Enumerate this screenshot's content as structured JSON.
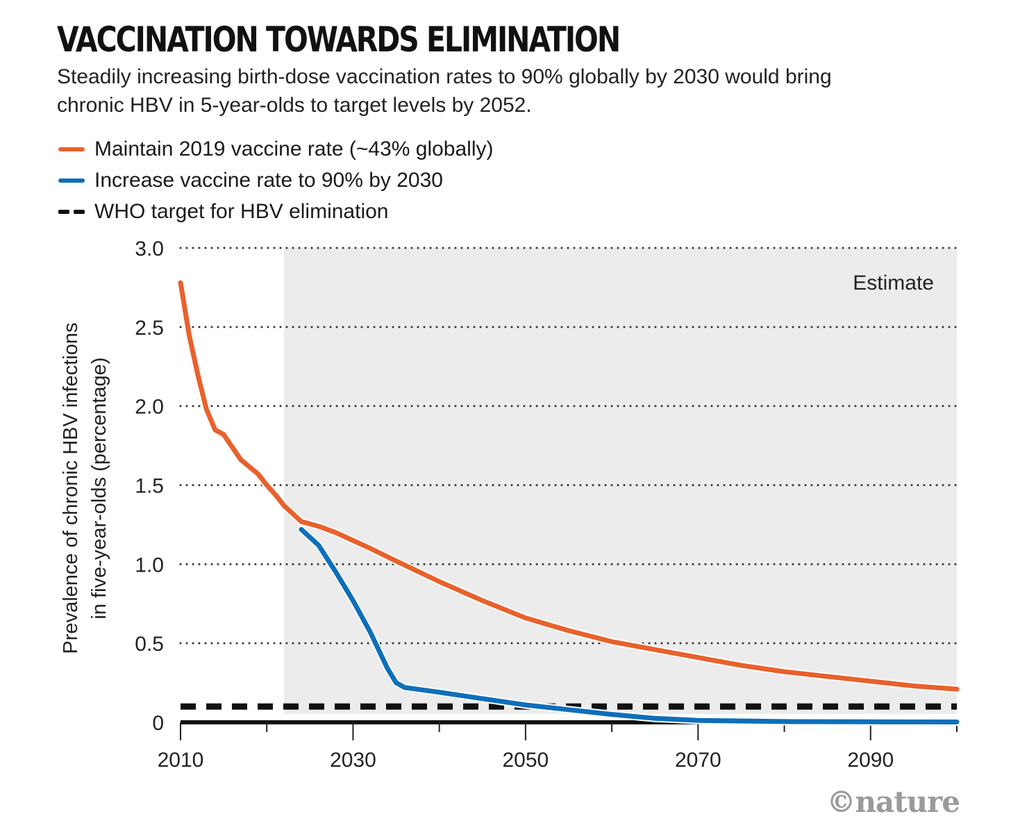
{
  "chart_data": {
    "type": "line",
    "title": "VACCINATION TOWARDS ELIMINATION",
    "subtitle": "Steadily increasing birth-dose vaccination rates to 90% globally by 2030 would bring chronic HBV in 5-year-olds to target levels by 2052.",
    "ylabel_line1": "Prevalence of chronic HBV infections",
    "ylabel_line2": "in five-year-olds (percentage)",
    "xlabel": "",
    "xlim": [
      2010,
      2100
    ],
    "ylim": [
      0,
      3.0
    ],
    "x_ticks": [
      2010,
      2030,
      2050,
      2070,
      2090
    ],
    "x_tick_labels": [
      "2010",
      "2030",
      "2050",
      "2070",
      "2090"
    ],
    "x_minor_ticks": [
      2020,
      2040,
      2060,
      2080,
      2100
    ],
    "y_ticks": [
      0,
      0.5,
      1.0,
      1.5,
      2.0,
      2.5,
      3.0
    ],
    "y_tick_labels": [
      "0",
      "0.5",
      "1.0",
      "1.5",
      "2.0",
      "2.5",
      "3.0"
    ],
    "grid": "horizontal dotted",
    "legend_placement": "top-left, above plot",
    "shaded_region": {
      "label": "Estimate",
      "from": 2022,
      "to": 2100
    },
    "series": [
      {
        "name": "Maintain 2019 vaccine rate (~43% globally)",
        "color": "#e8612c",
        "style": "solid",
        "x": [
          2010,
          2011,
          2012,
          2013,
          2014,
          2015,
          2016,
          2017,
          2019,
          2020,
          2021,
          2022,
          2024,
          2026,
          2028,
          2030,
          2032,
          2035,
          2040,
          2045,
          2050,
          2055,
          2060,
          2065,
          2070,
          2075,
          2080,
          2085,
          2090,
          2095,
          2100
        ],
        "values": [
          2.78,
          2.45,
          2.2,
          1.98,
          1.85,
          1.82,
          1.74,
          1.66,
          1.57,
          1.5,
          1.44,
          1.37,
          1.27,
          1.24,
          1.2,
          1.15,
          1.1,
          1.02,
          0.89,
          0.77,
          0.66,
          0.58,
          0.51,
          0.46,
          0.41,
          0.36,
          0.32,
          0.29,
          0.26,
          0.23,
          0.21
        ]
      },
      {
        "name": "Increase vaccine rate to 90% by 2030",
        "color": "#0e6fb9",
        "style": "solid",
        "x": [
          2024,
          2026,
          2028,
          2030,
          2032,
          2034,
          2035,
          2036,
          2040,
          2045,
          2050,
          2055,
          2060,
          2065,
          2070,
          2080,
          2090,
          2100
        ],
        "values": [
          1.22,
          1.12,
          0.95,
          0.77,
          0.57,
          0.34,
          0.25,
          0.22,
          0.19,
          0.15,
          0.11,
          0.08,
          0.05,
          0.025,
          0.012,
          0.005,
          0.003,
          0.002
        ]
      },
      {
        "name": "WHO target for HBV elimination",
        "color": "#111111",
        "style": "dashed",
        "x": [
          2010,
          2100
        ],
        "values": [
          0.1,
          0.1
        ]
      }
    ]
  },
  "credit": "©nature"
}
